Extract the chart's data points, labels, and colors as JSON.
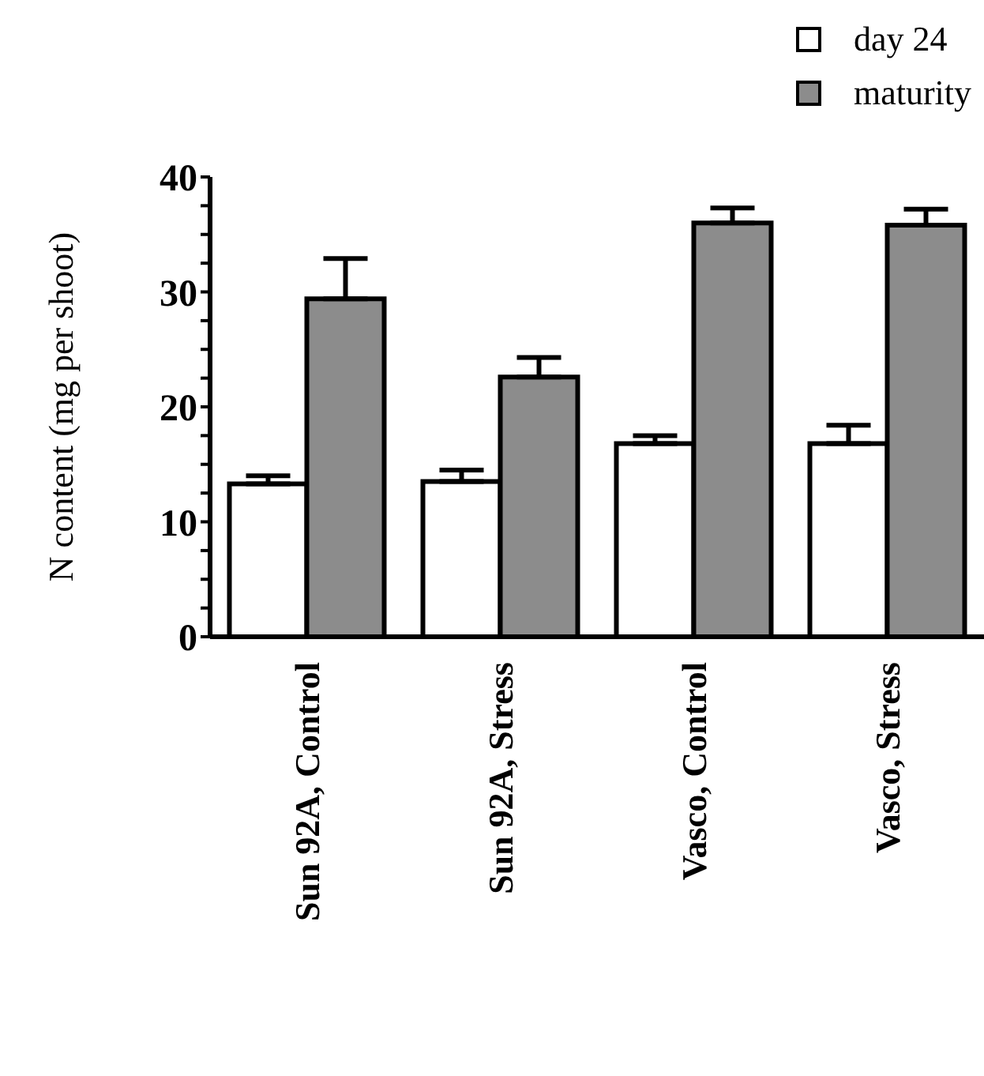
{
  "chart_data": {
    "type": "bar",
    "ylabel": "N content (mg per shoot)",
    "categories": [
      "Sun 92A, Control",
      "Sun 92A, Stress",
      "Vasco, Control",
      "Vasco, Stress"
    ],
    "series": [
      {
        "name": "day 24",
        "color": "#ffffff",
        "values": [
          13.3,
          13.5,
          16.8,
          16.8
        ],
        "errors": [
          [
            13.3,
            14.0
          ],
          [
            13.5,
            14.5
          ],
          [
            16.8,
            17.5
          ],
          [
            16.8,
            18.4
          ]
        ]
      },
      {
        "name": "maturity",
        "color": "#8c8c8c",
        "values": [
          29.4,
          22.6,
          36.0,
          35.8
        ],
        "errors": [
          [
            29.4,
            32.9
          ],
          [
            22.6,
            24.3
          ],
          [
            36.0,
            37.3
          ],
          [
            35.8,
            37.2
          ]
        ]
      }
    ],
    "ylim": [
      0,
      40
    ],
    "yticks": [
      0,
      {
        "value": 2.5,
        "label": null
      },
      {
        "value": 5,
        "label": null
      },
      {
        "value": 7.5,
        "label": null
      },
      10,
      {
        "value": 12.5,
        "label": null
      },
      {
        "value": 15,
        "label": null
      },
      {
        "value": 17.5,
        "label": null
      },
      20,
      {
        "value": 22.5,
        "label": null
      },
      {
        "value": 25,
        "label": null
      },
      {
        "value": 27.5,
        "label": null
      },
      30,
      {
        "value": 32.5,
        "label": null
      },
      {
        "value": 35,
        "label": null
      },
      {
        "value": 37.5,
        "label": null
      },
      40
    ],
    "grid": false,
    "legend": "top right"
  }
}
